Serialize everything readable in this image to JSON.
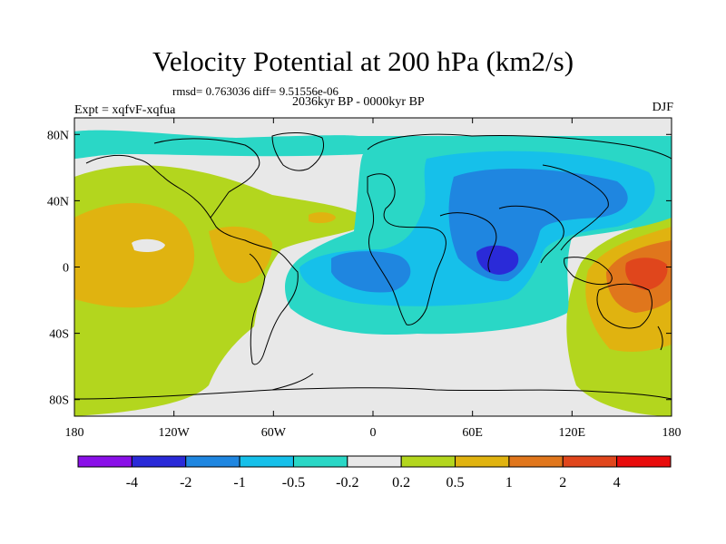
{
  "title": "Velocity Potential at 200 hPa (km2/s)",
  "stats": "rmsd= 0.763036 diff= 9.51556e-06",
  "period": "2036kyr BP - 0000kyr BP",
  "experiment": "Expt = xqfvF-xqfua",
  "season": "DJF",
  "lon_labels": [
    "180",
    "120W",
    "60W",
    "0",
    "60E",
    "120E",
    "180"
  ],
  "lat_labels": [
    "80N",
    "40N",
    "0",
    "40S",
    "80S"
  ],
  "colorbar": {
    "labels": [
      "-4",
      "-2",
      "-1",
      "-0.5",
      "-0.2",
      "0.2",
      "0.5",
      "1",
      "2",
      "4"
    ],
    "colors": [
      "#8a10e8",
      "#2a2ad8",
      "#1f86e0",
      "#16c0ea",
      "#2ad7c6",
      "#e8e8e8",
      "#b3d61e",
      "#e0b310",
      "#e0761c",
      "#e0461c",
      "#e80c0c"
    ]
  },
  "chart_data": {
    "type": "map",
    "variable": "Velocity potential anomaly at 200 hPa",
    "units": "km2/s",
    "contour_levels": [
      -4,
      -2,
      -1,
      -0.5,
      -0.2,
      0.2,
      0.5,
      1,
      2,
      4
    ],
    "lon_range": [
      -180,
      180
    ],
    "lat_range": [
      -90,
      90
    ],
    "features": [
      {
        "label": "min",
        "lon": 70,
        "lat": 5,
        "value": -2.5
      },
      {
        "label": "max",
        "lon": 160,
        "lat": 0,
        "value": 3.0
      },
      {
        "label": "max",
        "lon": -150,
        "lat": -5,
        "value": 1.5
      },
      {
        "label": "max",
        "lon": -75,
        "lat": 10,
        "value": 1.2
      }
    ]
  }
}
